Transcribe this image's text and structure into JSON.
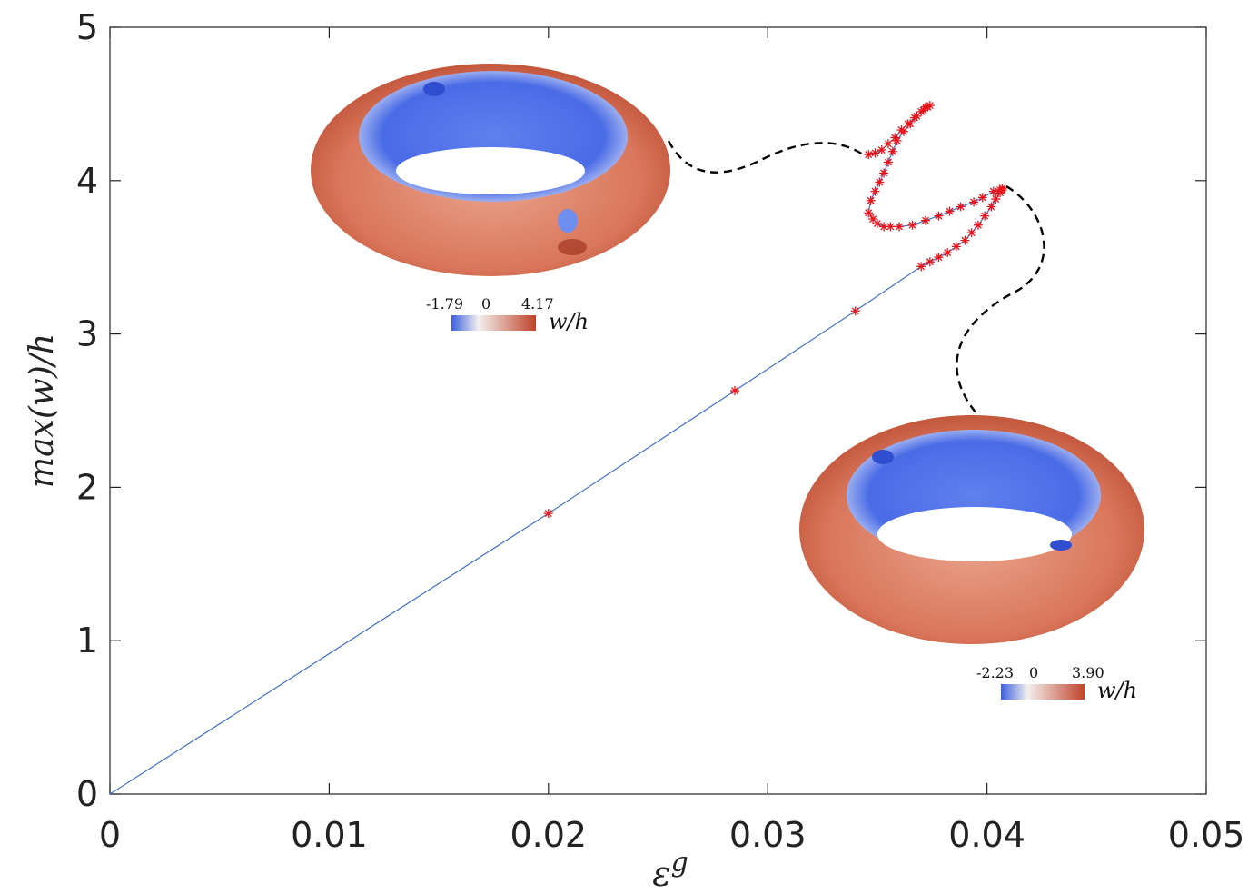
{
  "chart_data": {
    "type": "line",
    "title": "",
    "xlabel": "ε^g",
    "ylabel": "max(w)/h",
    "xlim": [
      0,
      0.05
    ],
    "ylim": [
      0,
      5
    ],
    "xticks": [
      "0",
      "0.01",
      "0.02",
      "0.03",
      "0.04",
      "0.05"
    ],
    "xtick_values": [
      0,
      0.01,
      0.02,
      0.03,
      0.04,
      0.05
    ],
    "yticks": [
      "0",
      "1",
      "2",
      "3",
      "4",
      "5"
    ],
    "ytick_values": [
      0,
      1,
      2,
      3,
      4,
      5
    ],
    "grid": false,
    "line_color": "#4472c4",
    "marker_color": "#e8141c",
    "series": [
      {
        "name": "",
        "x": [
          0,
          0.02,
          0.0285,
          0.034,
          0.037,
          0.0374,
          0.0378,
          0.0382,
          0.0386,
          0.039,
          0.0393,
          0.0396,
          0.0399,
          0.0402,
          0.0404,
          0.0406,
          0.0407,
          0.0407,
          0.0406,
          0.0403,
          0.0398,
          0.0394,
          0.0388,
          0.0383,
          0.0378,
          0.0372,
          0.0366,
          0.036,
          0.0356,
          0.0353,
          0.035,
          0.0348,
          0.0346,
          0.0347,
          0.0349,
          0.0351,
          0.0353,
          0.0355,
          0.0357,
          0.0359,
          0.0362,
          0.0365,
          0.0368,
          0.0371,
          0.0373,
          0.0374,
          0.0372,
          0.037,
          0.0367,
          0.0364,
          0.0361,
          0.0358,
          0.0355,
          0.0352,
          0.0349,
          0.0346
        ],
        "y": [
          0,
          1.83,
          2.63,
          3.15,
          3.44,
          3.47,
          3.5,
          3.53,
          3.57,
          3.61,
          3.66,
          3.71,
          3.77,
          3.83,
          3.88,
          3.92,
          3.94,
          3.95,
          3.94,
          3.93,
          3.89,
          3.86,
          3.83,
          3.8,
          3.77,
          3.74,
          3.71,
          3.7,
          3.7,
          3.7,
          3.72,
          3.75,
          3.79,
          3.87,
          3.93,
          3.99,
          4.05,
          4.12,
          4.19,
          4.26,
          4.32,
          4.37,
          4.42,
          4.46,
          4.48,
          4.49,
          4.48,
          4.45,
          4.41,
          4.37,
          4.33,
          4.28,
          4.24,
          4.2,
          4.18,
          4.17
        ]
      }
    ],
    "insets": [
      {
        "name": "upper-torus",
        "colorbar": {
          "min_label": "-1.79",
          "zero_label": "0",
          "max_label": "4.17",
          "unit": "w/h"
        }
      },
      {
        "name": "lower-torus",
        "colorbar": {
          "min_label": "-2.23",
          "zero_label": "0",
          "max_label": "3.90",
          "unit": "w/h"
        }
      }
    ],
    "colormap": {
      "low": "#3b5fe0",
      "mid": "#f2f0ee",
      "high": "#c0432a"
    }
  }
}
